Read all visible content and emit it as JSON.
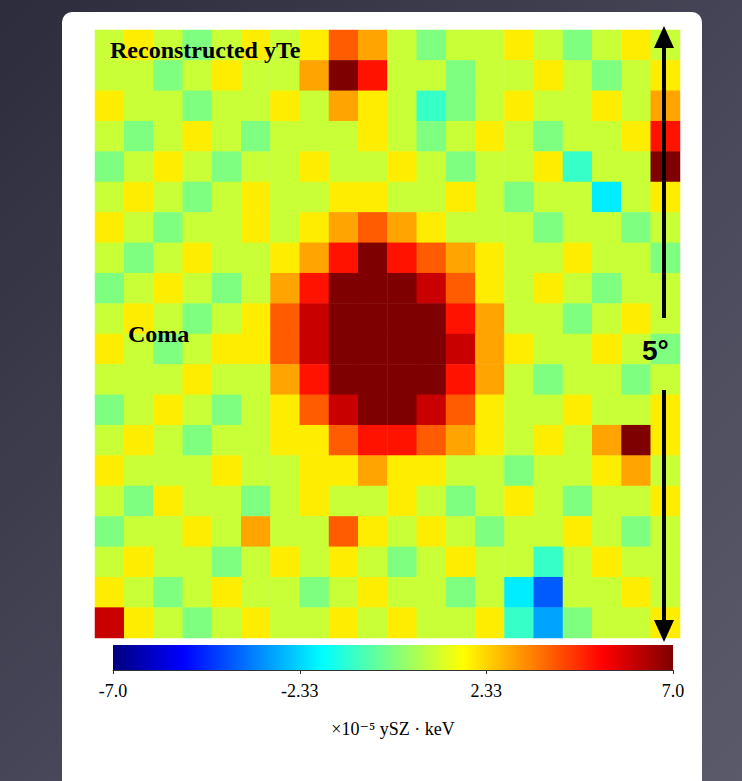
{
  "chart_data": {
    "type": "heatmap",
    "title": "Reconstructed yTe",
    "annotations": [
      "Coma",
      "5°"
    ],
    "tick_labels": false,
    "cells": [
      [
        1,
        2,
        1,
        0,
        1,
        2,
        1,
        2,
        4,
        3,
        1,
        0,
        1,
        1,
        2,
        1,
        0,
        1,
        2,
        1
      ],
      [
        1,
        1,
        0,
        1,
        2,
        1,
        1,
        3,
        7,
        5,
        1,
        1,
        0,
        1,
        1,
        2,
        1,
        0,
        1,
        2
      ],
      [
        2,
        1,
        1,
        0,
        1,
        1,
        2,
        1,
        3,
        2,
        1,
        -1,
        0,
        1,
        2,
        1,
        1,
        2,
        1,
        3
      ],
      [
        1,
        0,
        1,
        2,
        1,
        0,
        1,
        1,
        1,
        2,
        1,
        0,
        1,
        2,
        1,
        0,
        1,
        1,
        2,
        5
      ],
      [
        0,
        1,
        2,
        1,
        0,
        1,
        1,
        2,
        1,
        1,
        2,
        1,
        0,
        1,
        1,
        2,
        -1,
        1,
        1,
        7
      ],
      [
        1,
        2,
        1,
        0,
        1,
        2,
        1,
        1,
        2,
        2,
        1,
        1,
        2,
        1,
        0,
        1,
        1,
        -2,
        1,
        2
      ],
      [
        2,
        1,
        0,
        1,
        1,
        2,
        1,
        2,
        3,
        4,
        3,
        2,
        1,
        1,
        1,
        0,
        1,
        1,
        0,
        1
      ],
      [
        1,
        0,
        1,
        2,
        1,
        1,
        2,
        3,
        5,
        7,
        5,
        4,
        3,
        2,
        1,
        1,
        2,
        1,
        1,
        0
      ],
      [
        0,
        1,
        2,
        1,
        0,
        1,
        3,
        5,
        7,
        7,
        7,
        6,
        4,
        2,
        1,
        2,
        1,
        0,
        1,
        1
      ],
      [
        1,
        2,
        1,
        0,
        1,
        2,
        4,
        6,
        7,
        7,
        7,
        7,
        5,
        3,
        1,
        1,
        0,
        1,
        2,
        1
      ],
      [
        2,
        1,
        0,
        1,
        2,
        2,
        4,
        6,
        7,
        7,
        7,
        7,
        6,
        3,
        2,
        1,
        1,
        2,
        1,
        0
      ],
      [
        1,
        1,
        1,
        2,
        1,
        1,
        3,
        5,
        7,
        7,
        7,
        7,
        5,
        3,
        1,
        0,
        1,
        1,
        0,
        1
      ],
      [
        0,
        1,
        2,
        1,
        0,
        1,
        2,
        4,
        6,
        7,
        7,
        6,
        4,
        2,
        1,
        1,
        2,
        1,
        1,
        2
      ],
      [
        1,
        2,
        1,
        0,
        1,
        1,
        2,
        2,
        4,
        5,
        5,
        4,
        3,
        2,
        1,
        2,
        1,
        3,
        7,
        2
      ],
      [
        2,
        1,
        1,
        1,
        2,
        1,
        1,
        2,
        2,
        3,
        2,
        2,
        1,
        1,
        0,
        1,
        1,
        2,
        3,
        1
      ],
      [
        1,
        0,
        2,
        1,
        1,
        0,
        1,
        2,
        1,
        1,
        2,
        1,
        0,
        1,
        2,
        1,
        0,
        1,
        1,
        2
      ],
      [
        0,
        1,
        1,
        2,
        1,
        3,
        1,
        1,
        4,
        2,
        1,
        2,
        1,
        0,
        1,
        1,
        2,
        1,
        0,
        1
      ],
      [
        1,
        2,
        1,
        1,
        0,
        1,
        2,
        1,
        2,
        1,
        0,
        1,
        2,
        1,
        1,
        -1,
        1,
        2,
        1,
        1
      ],
      [
        2,
        1,
        0,
        1,
        2,
        1,
        1,
        0,
        1,
        2,
        1,
        1,
        0,
        1,
        -2,
        -4,
        1,
        1,
        2,
        1
      ],
      [
        6,
        2,
        1,
        0,
        1,
        2,
        1,
        1,
        2,
        1,
        2,
        1,
        1,
        2,
        -1,
        -3,
        0,
        1,
        1,
        2
      ]
    ],
    "colorbar": {
      "range": [
        -7,
        7
      ],
      "ticks": [
        {
          "value": -7,
          "label": "-7.0"
        },
        -2.33,
        2.33,
        {
          "value": 7,
          "label": "7.0"
        }
      ],
      "label": "×10⁻⁵ ySZ · keV"
    }
  }
}
